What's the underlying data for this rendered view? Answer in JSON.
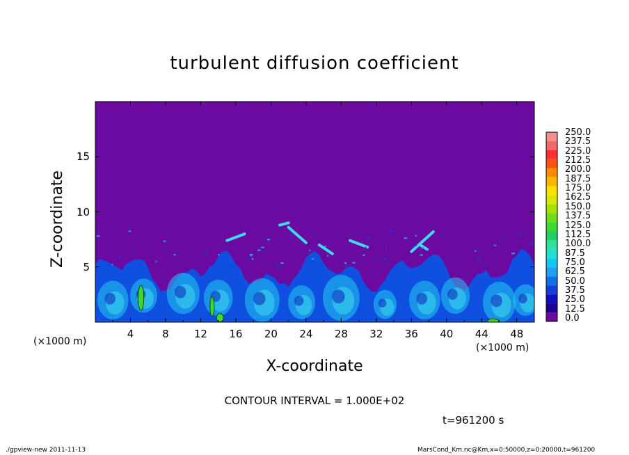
{
  "chart_data": {
    "type": "heatmap",
    "title": "turbulent diffusion coefficient",
    "xlabel": "X-coordinate",
    "ylabel": "Z-coordinate",
    "x_unit": "(×1000 m)",
    "y_unit": "(×1000 m)",
    "x_ticks": [
      "4",
      "8",
      "12",
      "16",
      "20",
      "24",
      "28",
      "32",
      "36",
      "40",
      "44",
      "48"
    ],
    "y_ticks": [
      "5",
      "10",
      "15"
    ],
    "xlim": [
      0,
      50
    ],
    "ylim": [
      0,
      20
    ],
    "colorbar_labels": [
      "250.0",
      "237.5",
      "225.0",
      "212.5",
      "200.0",
      "187.5",
      "175.0",
      "162.5",
      "150.0",
      "137.5",
      "125.0",
      "112.5",
      "100.0",
      "87.5",
      "75.0",
      "62.5",
      "50.0",
      "37.5",
      "25.0",
      "12.5",
      "0.0"
    ],
    "colorbar_colors": [
      "#f0908c",
      "#f06a6a",
      "#ff3030",
      "#ff5010",
      "#ff8c00",
      "#ffb400",
      "#ffe000",
      "#d8e800",
      "#a8e000",
      "#70dc20",
      "#40d830",
      "#20d060",
      "#30e0a0",
      "#20e0d0",
      "#10c8f0",
      "#20a0f0",
      "#1070e8",
      "#1040d8",
      "#1010c0",
      "#1c0090",
      "#6a0aa0"
    ],
    "contour_interval": "CONTOUR INTERVAL = 1.000E+02",
    "time": "t=961200 s",
    "footer_left": "./gpview-new  2011-11-13",
    "footer_right": "MarsCond_Km.nc@Km,x=0:50000,z=0:20000,t=961200"
  }
}
